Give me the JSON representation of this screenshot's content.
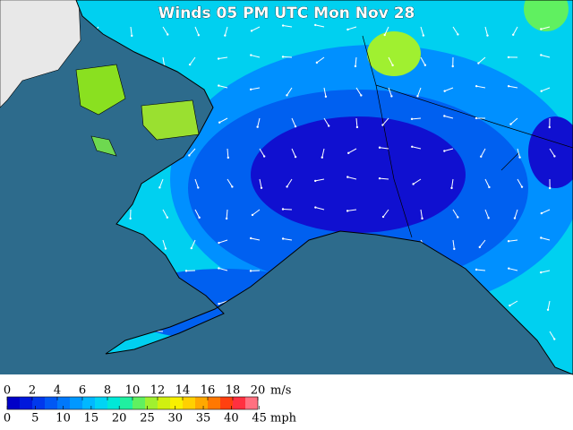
{
  "title": "Winds 05 PM UTC Mon Nov 28",
  "legend": {
    "ms_unit": "m/s",
    "ms_lim": [
      0,
      20
    ],
    "ms_ticks": [
      0,
      2,
      4,
      6,
      8,
      10,
      12,
      14,
      16,
      18,
      20
    ],
    "mph_unit": "mph",
    "mph_ticks": [
      0,
      5,
      10,
      15,
      20,
      25,
      30,
      35,
      40,
      45
    ],
    "colors": [
      "#0000c8",
      "#0018dc",
      "#0038ec",
      "#0058f4",
      "#0078fa",
      "#0098ff",
      "#00b8ff",
      "#00d4f4",
      "#00e8d8",
      "#20f0a0",
      "#60f060",
      "#a0f030",
      "#d0f010",
      "#f8f000",
      "#ffd000",
      "#ffa800",
      "#ff7800",
      "#ff4010",
      "#ff3040",
      "#ff7080"
    ]
  }
}
